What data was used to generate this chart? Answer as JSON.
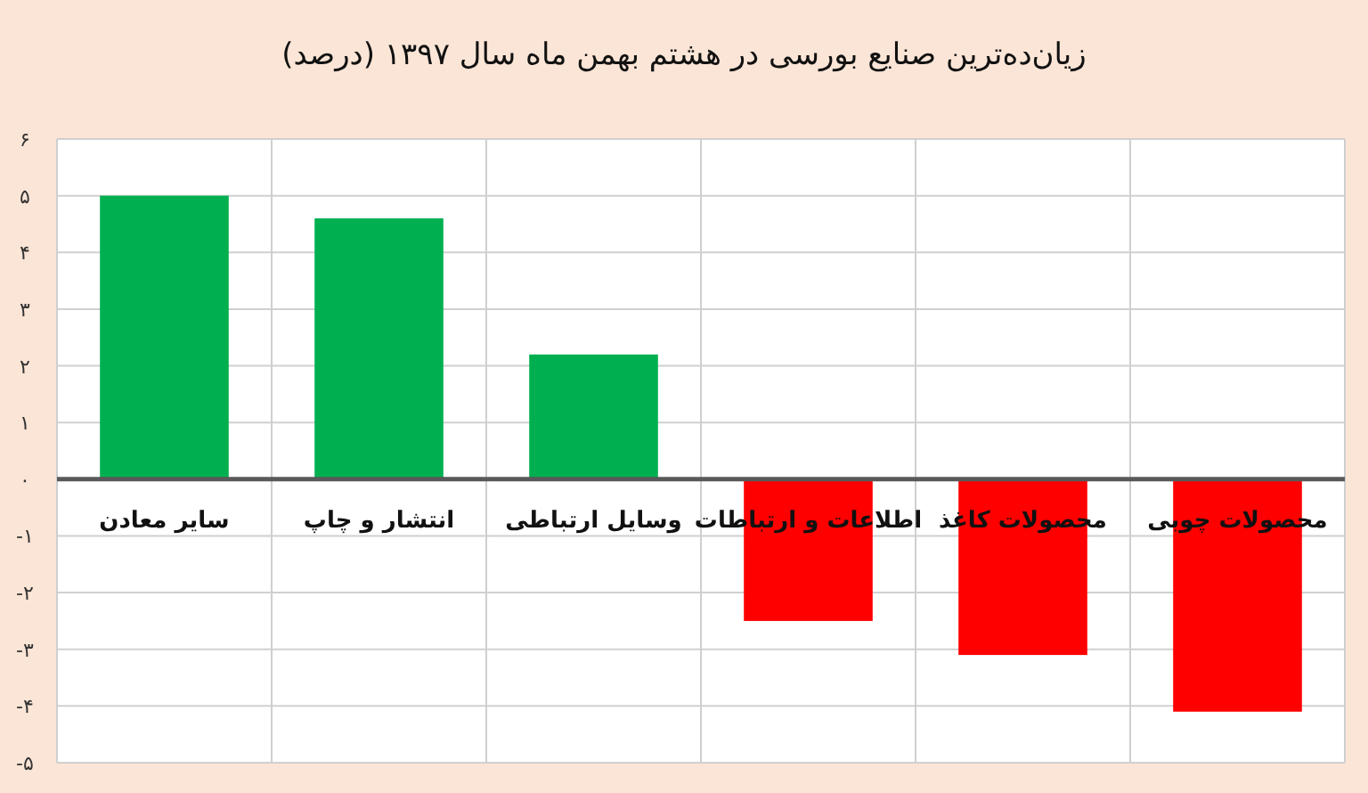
{
  "chart_data": {
    "type": "bar",
    "title": "زیان‌ده‌ترین صنایع بورسی در هشتم بهمن ماه سال ۱۳۹۷ (درصد)",
    "categories": [
      "سایر معادن",
      "انتشار و چاپ",
      "وسایل ارتباطی",
      "اطلاعات و ارتباطات",
      "محصولات کاغذ",
      "محصولات چوبی"
    ],
    "values": [
      5.0,
      4.6,
      2.2,
      -2.5,
      -3.1,
      -4.1
    ],
    "colors": [
      "#00b050",
      "#00b050",
      "#00b050",
      "#ff0000",
      "#ff0000",
      "#ff0000"
    ],
    "ylim": [
      -5,
      6
    ],
    "yticks": [
      {
        "value": -5,
        "label": "-۵"
      },
      {
        "value": -4,
        "label": "-۴"
      },
      {
        "value": -3,
        "label": "-۳"
      },
      {
        "value": -2,
        "label": "-۲"
      },
      {
        "value": -1,
        "label": "-۱"
      },
      {
        "value": 0,
        "label": "۰"
      },
      {
        "value": 1,
        "label": "۱"
      },
      {
        "value": 2,
        "label": "۲"
      },
      {
        "value": 3,
        "label": "۳"
      },
      {
        "value": 4,
        "label": "۴"
      },
      {
        "value": 5,
        "label": "۵"
      },
      {
        "value": 6,
        "label": "۶"
      }
    ],
    "grid": true
  }
}
